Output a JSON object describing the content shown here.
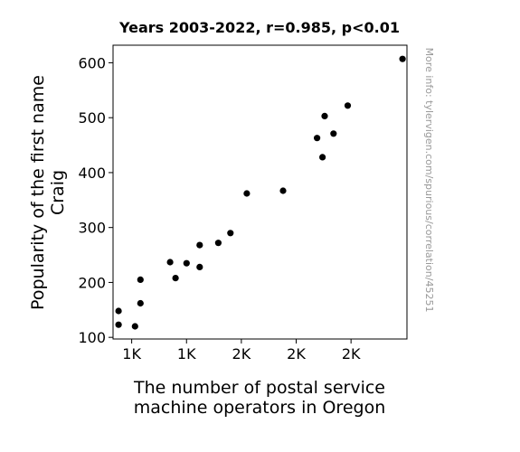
{
  "chart_data": {
    "type": "scatter",
    "title": "Years 2003-2022, r=0.985, p<0.01",
    "xlabel_lines": [
      "The number of postal service",
      "machine operators in Oregon"
    ],
    "ylabel_lines": [
      "Popularity of the first name",
      "Craig"
    ],
    "credit": "More info: tylervigen.com/spurious/correlation/45251",
    "x_ticks": [
      {
        "value": 1000,
        "label": "1K"
      },
      {
        "value": 1250,
        "label": "1K"
      },
      {
        "value": 1500,
        "label": "2K"
      },
      {
        "value": 1750,
        "label": "2K"
      },
      {
        "value": 2000,
        "label": "2K"
      }
    ],
    "y_ticks": [
      100,
      200,
      300,
      400,
      500,
      600
    ],
    "xlim": [
      915,
      2255
    ],
    "ylim": [
      97,
      632
    ],
    "grid": false,
    "marker_color": "#000000",
    "points": [
      {
        "x": 940,
        "y": 148
      },
      {
        "x": 940,
        "y": 123
      },
      {
        "x": 1015,
        "y": 120
      },
      {
        "x": 1040,
        "y": 205
      },
      {
        "x": 1040,
        "y": 162
      },
      {
        "x": 1175,
        "y": 237
      },
      {
        "x": 1200,
        "y": 208
      },
      {
        "x": 1250,
        "y": 235
      },
      {
        "x": 1310,
        "y": 268
      },
      {
        "x": 1310,
        "y": 228
      },
      {
        "x": 1395,
        "y": 272
      },
      {
        "x": 1450,
        "y": 290
      },
      {
        "x": 1525,
        "y": 362
      },
      {
        "x": 1690,
        "y": 367
      },
      {
        "x": 1845,
        "y": 463
      },
      {
        "x": 1870,
        "y": 428
      },
      {
        "x": 1880,
        "y": 503
      },
      {
        "x": 1920,
        "y": 471
      },
      {
        "x": 1985,
        "y": 522
      },
      {
        "x": 2235,
        "y": 607
      }
    ]
  }
}
